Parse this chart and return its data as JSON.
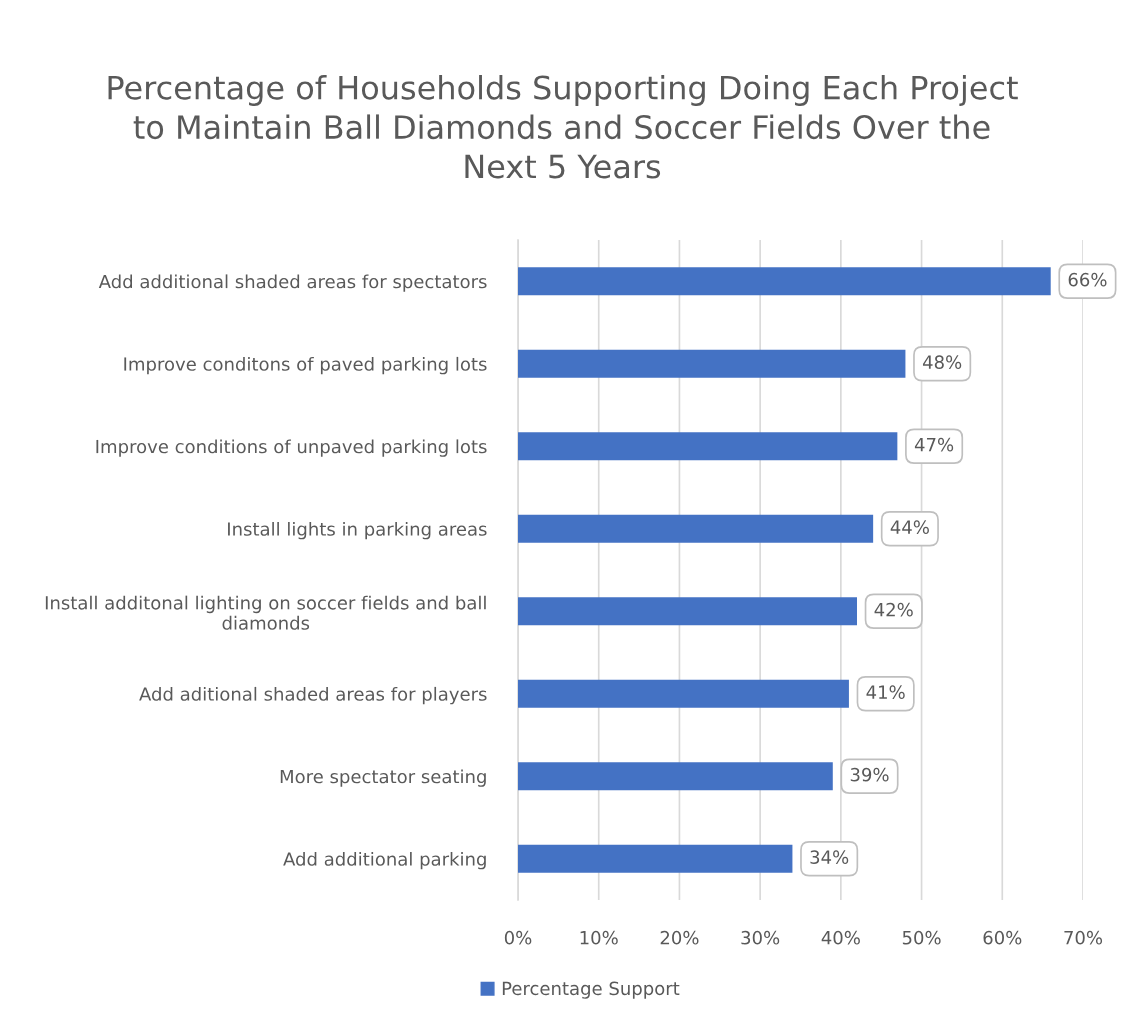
{
  "chart_data": {
    "type": "bar",
    "orientation": "horizontal",
    "title": "Percentage of Households Supporting Doing Each Project\nto Maintain Ball Diamonds and Soccer Fields Over the\nNext 5 Years",
    "categories": [
      "Add additional shaded areas for spectators",
      "Improve conditons of paved parking lots",
      "Improve conditions of unpaved parking lots",
      "Install lights in parking areas",
      "Install additonal lighting on soccer fields and ball\ndiamonds",
      "Add aditional shaded areas for players",
      "More spectator seating",
      "Add additional parking"
    ],
    "series": [
      {
        "name": "Percentage Support",
        "color": "#4472c4",
        "values": [
          66,
          48,
          47,
          44,
          42,
          41,
          39,
          34
        ],
        "value_labels": [
          "66%",
          "48%",
          "47%",
          "44%",
          "42%",
          "41%",
          "39%",
          "34%"
        ]
      }
    ],
    "xlim": [
      0,
      70
    ],
    "xticks": [
      {
        "value": 0,
        "label": "0%"
      },
      {
        "value": 10,
        "label": "10%"
      },
      {
        "value": 20,
        "label": "20%"
      },
      {
        "value": 30,
        "label": "30%"
      },
      {
        "value": 40,
        "label": "40%"
      },
      {
        "value": 50,
        "label": "50%"
      },
      {
        "value": 60,
        "label": "60%"
      },
      {
        "value": 70,
        "label": "70%"
      }
    ],
    "grid": "x",
    "legend": "bottom"
  }
}
